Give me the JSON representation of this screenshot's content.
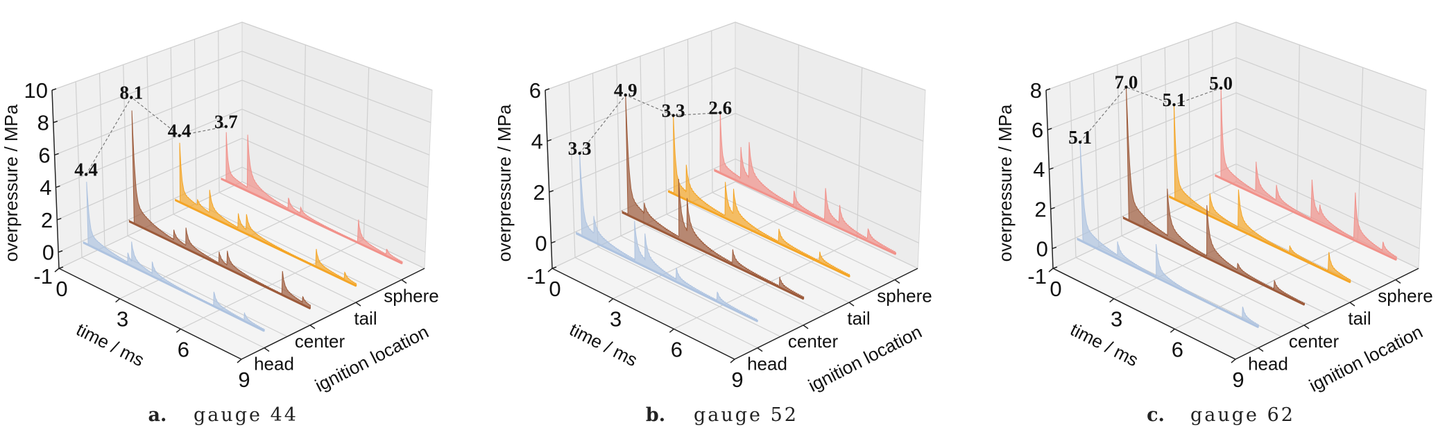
{
  "chart_data": [
    {
      "type": "area",
      "panel_label": "a.",
      "caption": "gauge 44",
      "grid": true,
      "x_axis": {
        "label": "time / ms",
        "range": [
          0,
          9
        ],
        "ticks": [
          "0",
          "3",
          "6",
          "9"
        ]
      },
      "y_axis": {
        "label": "ignition location",
        "categories": [
          "head",
          "center",
          "tail",
          "sphere"
        ]
      },
      "z_axis": {
        "label": "overpressure / MPa",
        "range": [
          -1,
          10
        ],
        "ticks": [
          "-1",
          "0",
          "2",
          "4",
          "6",
          "8",
          "10"
        ]
      },
      "series": [
        {
          "name": "head",
          "color": "#aec3e0",
          "peak": 4.4,
          "peak_label": "4.4",
          "peak_time": 0.35,
          "secondary_peaks": [
            [
              2.3,
              0.6
            ],
            [
              2.5,
              1.2
            ],
            [
              3.5,
              0.7
            ],
            [
              6.5,
              1.0
            ],
            [
              8.0,
              0.5
            ]
          ]
        },
        {
          "name": "center",
          "color": "#9c5a3a",
          "peak": 8.1,
          "peak_label": "8.1",
          "peak_time": 0.35,
          "secondary_peaks": [
            [
              2.3,
              0.6
            ],
            [
              2.9,
              1.1
            ],
            [
              4.5,
              0.8
            ],
            [
              4.9,
              1.0
            ],
            [
              7.6,
              1.6
            ],
            [
              8.6,
              0.4
            ]
          ]
        },
        {
          "name": "tail",
          "color": "#f4a526",
          "peak": 4.4,
          "peak_label": "4.4",
          "peak_time": 0.35,
          "secondary_peaks": [
            [
              1.2,
              0.4
            ],
            [
              1.8,
              1.5
            ],
            [
              3.2,
              0.9
            ],
            [
              3.6,
              1.0
            ],
            [
              7.0,
              1.2
            ],
            [
              8.4,
              0.5
            ]
          ]
        },
        {
          "name": "sphere",
          "color": "#f1918a",
          "peak": 3.7,
          "peak_label": "3.7",
          "peak_time": 0.35,
          "secondary_peaks": [
            [
              1.4,
              3.5
            ],
            [
              3.4,
              0.7
            ],
            [
              4.0,
              0.4
            ],
            [
              6.8,
              1.6
            ],
            [
              8.2,
              0.4
            ]
          ]
        }
      ]
    },
    {
      "type": "area",
      "panel_label": "b.",
      "caption": "gauge 52",
      "grid": true,
      "x_axis": {
        "label": "time / ms",
        "range": [
          0,
          9
        ],
        "ticks": [
          "0",
          "3",
          "6",
          "9"
        ]
      },
      "y_axis": {
        "label": "ignition location",
        "categories": [
          "head",
          "center",
          "tail",
          "sphere"
        ]
      },
      "z_axis": {
        "label": "overpressure / MPa",
        "range": [
          -1,
          6
        ],
        "ticks": [
          "-1",
          "0",
          "2",
          "4",
          "6"
        ]
      },
      "series": [
        {
          "name": "head",
          "color": "#aec3e0",
          "peak": 3.3,
          "peak_label": "3.3",
          "peak_time": 0.4,
          "secondary_peaks": [
            [
              1.0,
              0.7
            ],
            [
              3.0,
              1.5
            ],
            [
              3.5,
              1.0
            ],
            [
              5.0,
              0.5
            ],
            [
              7.0,
              0.4
            ]
          ]
        },
        {
          "name": "center",
          "color": "#9c5a3a",
          "peak": 4.9,
          "peak_label": "4.9",
          "peak_time": 0.4,
          "secondary_peaks": [
            [
              1.2,
              0.4
            ],
            [
              2.9,
              2.3
            ],
            [
              3.3,
              1.3
            ],
            [
              5.5,
              0.6
            ],
            [
              7.8,
              0.4
            ]
          ]
        },
        {
          "name": "tail",
          "color": "#f4a526",
          "peak": 3.3,
          "peak_label": "3.3",
          "peak_time": 0.4,
          "secondary_peaks": [
            [
              1.0,
              1.1
            ],
            [
              2.9,
              1.4
            ],
            [
              3.3,
              1.0
            ],
            [
              5.5,
              0.6
            ],
            [
              7.5,
              0.4
            ]
          ]
        },
        {
          "name": "sphere",
          "color": "#f1918a",
          "peak": 2.6,
          "peak_label": "2.6",
          "peak_time": 0.4,
          "secondary_peaks": [
            [
              1.4,
              1.3
            ],
            [
              1.8,
              1.5
            ],
            [
              4.0,
              0.6
            ],
            [
              5.5,
              1.5
            ],
            [
              6.2,
              0.8
            ],
            [
              7.6,
              0.5
            ]
          ]
        }
      ]
    },
    {
      "type": "area",
      "panel_label": "c.",
      "caption": "gauge 62",
      "grid": true,
      "x_axis": {
        "label": "time / ms",
        "range": [
          0,
          9
        ],
        "ticks": [
          "0",
          "3",
          "6",
          "9"
        ]
      },
      "y_axis": {
        "label": "ignition location",
        "categories": [
          "head",
          "center",
          "tail",
          "sphere"
        ]
      },
      "z_axis": {
        "label": "overpressure / MPa",
        "range": [
          -1,
          8
        ],
        "ticks": [
          "-1",
          "0",
          "2",
          "4",
          "6",
          "8"
        ]
      },
      "series": [
        {
          "name": "head",
          "color": "#aec3e0",
          "peak": 5.1,
          "peak_label": "5.1",
          "peak_time": 0.4,
          "secondary_peaks": [
            [
              2.1,
              0.7
            ],
            [
              4.0,
              1.6
            ],
            [
              8.2,
              0.7
            ]
          ]
        },
        {
          "name": "center",
          "color": "#9c5a3a",
          "peak": 7.0,
          "peak_label": "7.0",
          "peak_time": 0.4,
          "secondary_peaks": [
            [
              2.3,
              2.4
            ],
            [
              4.2,
              3.0
            ],
            [
              5.7,
              0.4
            ],
            [
              7.5,
              0.5
            ]
          ]
        },
        {
          "name": "tail",
          "color": "#f4a526",
          "peak": 5.1,
          "peak_label": "5.1",
          "peak_time": 0.4,
          "secondary_peaks": [
            [
              2.1,
              1.0
            ],
            [
              3.5,
              2.0
            ],
            [
              6.0,
              0.4
            ],
            [
              7.9,
              1.1
            ]
          ]
        },
        {
          "name": "sphere",
          "color": "#f1918a",
          "peak": 5.0,
          "peak_label": "5.0",
          "peak_time": 0.4,
          "secondary_peaks": [
            [
              2.1,
              1.6
            ],
            [
              3.1,
              0.8
            ],
            [
              4.8,
              2.4
            ],
            [
              5.2,
              0.6
            ],
            [
              6.9,
              2.7
            ],
            [
              8.3,
              0.5
            ]
          ]
        }
      ]
    }
  ]
}
